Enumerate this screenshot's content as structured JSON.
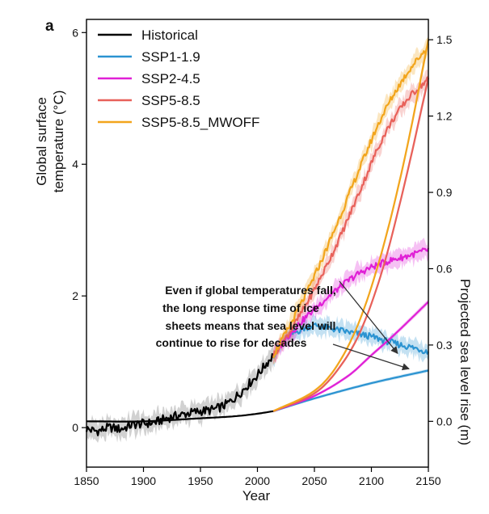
{
  "panel_label": "a",
  "annotation": [
    "Even if global temperatures fall,",
    "the long response time of ice",
    "sheets means that sea level will",
    "continue to rise for decades"
  ],
  "chart_data": {
    "type": "line",
    "title": "",
    "xlabel": "Year",
    "xlim": [
      1850,
      2150
    ],
    "x_ticks": [
      1850,
      1900,
      1950,
      2000,
      2050,
      2100,
      2150
    ],
    "y_left": {
      "label": "Global surface temperature (°C)",
      "lim": [
        -0.6,
        6.2
      ],
      "ticks": [
        0,
        2,
        4,
        6
      ]
    },
    "y_right": {
      "label": "Projected sea level rise (m)",
      "lim": [
        -0.18,
        1.58
      ],
      "ticks": [
        "0.0",
        "0.3",
        "0.6",
        "0.9",
        "1.2",
        "1.5"
      ]
    },
    "legend_position": "top-left",
    "grid": false,
    "series": [
      {
        "name": "Historical",
        "color": "#000000",
        "temperature": {
          "x": [
            1850,
            1860,
            1870,
            1880,
            1890,
            1900,
            1910,
            1920,
            1930,
            1940,
            1950,
            1960,
            1970,
            1980,
            1990,
            2000,
            2010,
            2014
          ],
          "y": [
            -0.02,
            -0.05,
            0.0,
            -0.02,
            0.04,
            0.06,
            0.08,
            0.14,
            0.18,
            0.22,
            0.25,
            0.27,
            0.33,
            0.45,
            0.62,
            0.8,
            1.02,
            1.1
          ]
        },
        "sea_level": {
          "x": [
            1850,
            1900,
            1950,
            1980,
            2000,
            2014
          ],
          "y": [
            0.0,
            0.0,
            0.012,
            0.02,
            0.03,
            0.04
          ]
        }
      },
      {
        "name": "SSP1-1.9",
        "color": "#2b93d1",
        "temperature": {
          "x": [
            2014,
            2025,
            2040,
            2050,
            2060,
            2080,
            2100,
            2120,
            2140,
            2150
          ],
          "y": [
            1.1,
            1.35,
            1.5,
            1.55,
            1.52,
            1.45,
            1.38,
            1.28,
            1.2,
            1.15
          ]
        },
        "sea_level": {
          "x": [
            2014,
            2050,
            2100,
            2150
          ],
          "y": [
            0.04,
            0.09,
            0.15,
            0.2
          ]
        }
      },
      {
        "name": "SSP2-4.5",
        "color": "#e020d6",
        "temperature": {
          "x": [
            2014,
            2030,
            2050,
            2070,
            2090,
            2110,
            2130,
            2150
          ],
          "y": [
            1.1,
            1.45,
            1.8,
            2.1,
            2.35,
            2.5,
            2.6,
            2.7
          ]
        },
        "sea_level": {
          "x": [
            2014,
            2050,
            2080,
            2100,
            2120,
            2150
          ],
          "y": [
            0.04,
            0.1,
            0.18,
            0.26,
            0.34,
            0.47
          ]
        }
      },
      {
        "name": "SSP5-8.5",
        "color": "#e8615a",
        "temperature": {
          "x": [
            2014,
            2030,
            2050,
            2070,
            2090,
            2110,
            2130,
            2150
          ],
          "y": [
            1.1,
            1.5,
            2.1,
            2.8,
            3.6,
            4.4,
            4.95,
            5.3
          ]
        },
        "sea_level": {
          "x": [
            2014,
            2050,
            2070,
            2090,
            2110,
            2130,
            2150
          ],
          "y": [
            0.04,
            0.11,
            0.2,
            0.35,
            0.6,
            0.95,
            1.35
          ]
        }
      },
      {
        "name": "SSP5-8.5_MWOFF",
        "color": "#f2a51c",
        "temperature": {
          "x": [
            2014,
            2030,
            2050,
            2070,
            2090,
            2110,
            2130,
            2150
          ],
          "y": [
            1.1,
            1.6,
            2.3,
            3.1,
            3.95,
            4.75,
            5.35,
            5.8
          ]
        },
        "sea_level": {
          "x": [
            2014,
            2050,
            2070,
            2090,
            2110,
            2130,
            2150
          ],
          "y": [
            0.04,
            0.12,
            0.22,
            0.4,
            0.68,
            1.05,
            1.5
          ]
        }
      }
    ]
  }
}
